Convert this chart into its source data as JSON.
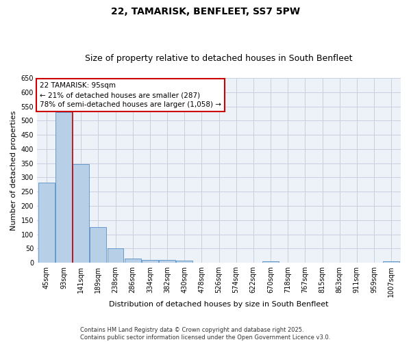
{
  "title": "22, TAMARISK, BENFLEET, SS7 5PW",
  "subtitle": "Size of property relative to detached houses in South Benfleet",
  "xlabel": "Distribution of detached houses by size in South Benfleet",
  "ylabel": "Number of detached properties",
  "categories": [
    "45sqm",
    "93sqm",
    "141sqm",
    "189sqm",
    "238sqm",
    "286sqm",
    "334sqm",
    "382sqm",
    "430sqm",
    "478sqm",
    "526sqm",
    "574sqm",
    "622sqm",
    "670sqm",
    "718sqm",
    "767sqm",
    "815sqm",
    "863sqm",
    "911sqm",
    "959sqm",
    "1007sqm"
  ],
  "values": [
    283,
    530,
    348,
    125,
    50,
    16,
    11,
    10,
    7,
    0,
    0,
    0,
    0,
    5,
    0,
    0,
    0,
    0,
    0,
    0,
    5
  ],
  "bar_color": "#b8cfe8",
  "bar_edge_color": "#6699cc",
  "vline_x": 1.5,
  "annotation_text": "22 TAMARISK: 95sqm\n← 21% of detached houses are smaller (287)\n78% of semi-detached houses are larger (1,058) →",
  "annotation_box_color": "#ffffff",
  "annotation_box_edge_color": "#cc0000",
  "vline_color": "#cc0000",
  "ylim": [
    0,
    650
  ],
  "yticks": [
    0,
    50,
    100,
    150,
    200,
    250,
    300,
    350,
    400,
    450,
    500,
    550,
    600,
    650
  ],
  "footer": "Contains HM Land Registry data © Crown copyright and database right 2025.\nContains public sector information licensed under the Open Government Licence v3.0.",
  "bg_color": "#edf1f8",
  "grid_color": "#c8d0e0",
  "title_fontsize": 10,
  "subtitle_fontsize": 9,
  "axis_label_fontsize": 8,
  "tick_fontsize": 7,
  "footer_fontsize": 6,
  "annotation_fontsize": 7.5
}
